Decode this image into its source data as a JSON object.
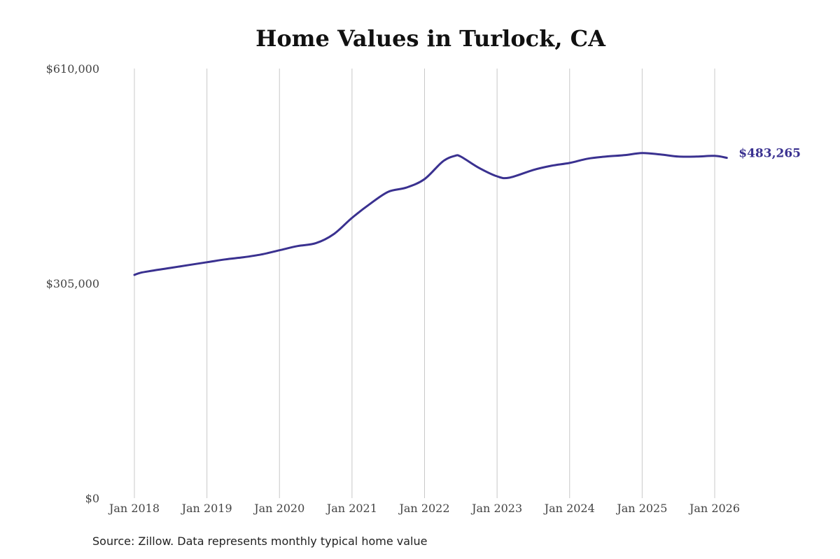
{
  "colors": {
    "line": "#3a3190",
    "grid": "#c8c8c8",
    "text": "#444444"
  },
  "chart_data": {
    "type": "line",
    "title": "Home Values in Turlock, CA",
    "xlabel": "",
    "ylabel": "",
    "ylim": [
      0,
      610000
    ],
    "yticks": [
      0,
      305000,
      610000
    ],
    "ytick_labels": [
      "$0",
      "$305,000",
      "$610,000"
    ],
    "xlim": [
      "2018-01",
      "2026-03"
    ],
    "xticks": [
      "2018-01",
      "2019-01",
      "2020-01",
      "2021-01",
      "2022-01",
      "2023-01",
      "2024-01",
      "2025-01",
      "2026-01"
    ],
    "xtick_labels": [
      "Jan 2018",
      "Jan 2019",
      "Jan 2020",
      "Jan 2021",
      "Jan 2022",
      "Jan 2023",
      "Jan 2024",
      "Jan 2025",
      "Jan 2026"
    ],
    "grid": "vertical",
    "legend": "none",
    "end_label": "$483,265",
    "series": [
      {
        "x": [
          "2018-01",
          "2018-02",
          "2018-04",
          "2018-07",
          "2018-10",
          "2019-01",
          "2019-04",
          "2019-07",
          "2019-10",
          "2020-01",
          "2020-04",
          "2020-07",
          "2020-10",
          "2021-01",
          "2021-04",
          "2021-07",
          "2021-10",
          "2022-01",
          "2022-04",
          "2022-06",
          "2022-07",
          "2022-10",
          "2023-01",
          "2023-03",
          "2023-07",
          "2023-10",
          "2024-01",
          "2024-04",
          "2024-07",
          "2024-10",
          "2025-01",
          "2025-04",
          "2025-07",
          "2025-10",
          "2026-01",
          "2026-03"
        ],
        "values": [
          317000,
          320000,
          323000,
          327000,
          331000,
          335000,
          339000,
          342000,
          346000,
          352000,
          358000,
          362000,
          375000,
          398000,
          418000,
          435000,
          441000,
          453000,
          478000,
          486000,
          485000,
          469000,
          457000,
          455000,
          466000,
          472000,
          476000,
          482000,
          485000,
          487000,
          490000,
          488000,
          485000,
          485000,
          486000,
          483265
        ]
      }
    ]
  },
  "source": "Source: Zillow. Data represents monthly typical home value"
}
